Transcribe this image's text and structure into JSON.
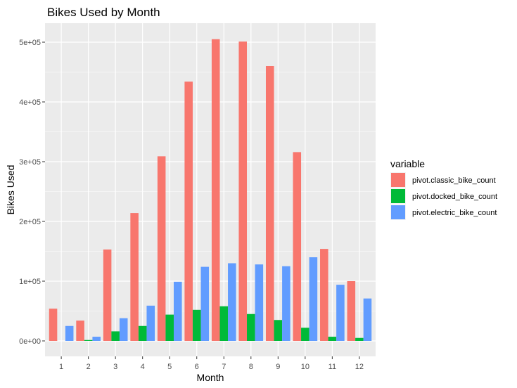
{
  "chart_data": {
    "type": "bar",
    "title": "Bikes Used by Month",
    "xlabel": "Month",
    "ylabel": "Bikes Used",
    "categories": [
      "1",
      "2",
      "3",
      "4",
      "5",
      "6",
      "7",
      "8",
      "9",
      "10",
      "11",
      "12"
    ],
    "series": [
      {
        "name": "pivot.classic_bike_count",
        "color": "#F8766D",
        "values": [
          54000,
          34000,
          153000,
          214000,
          309000,
          434000,
          505000,
          501000,
          460000,
          316000,
          154000,
          100000
        ]
      },
      {
        "name": "pivot.docked_bike_count",
        "color": "#00BA38",
        "values": [
          0,
          1500,
          16000,
          25000,
          44000,
          52000,
          58000,
          45000,
          35000,
          22000,
          7000,
          5000
        ]
      },
      {
        "name": "pivot.electric_bike_count",
        "color": "#619CFF",
        "values": [
          25000,
          7000,
          38000,
          59000,
          99000,
          124000,
          130000,
          128000,
          125000,
          140000,
          94000,
          71000
        ]
      }
    ],
    "yticks": [
      0,
      100000,
      200000,
      300000,
      400000,
      500000
    ],
    "ytick_labels": [
      "0e+00",
      "1e+05",
      "2e+05",
      "3e+05",
      "4e+05",
      "5e+05"
    ],
    "ylim": [
      -25000,
      530000
    ],
    "legend_title": "variable",
    "legend_position": "right",
    "grid": true,
    "panel_background": "#EBEBEB",
    "grid_color": "#FFFFFF"
  }
}
